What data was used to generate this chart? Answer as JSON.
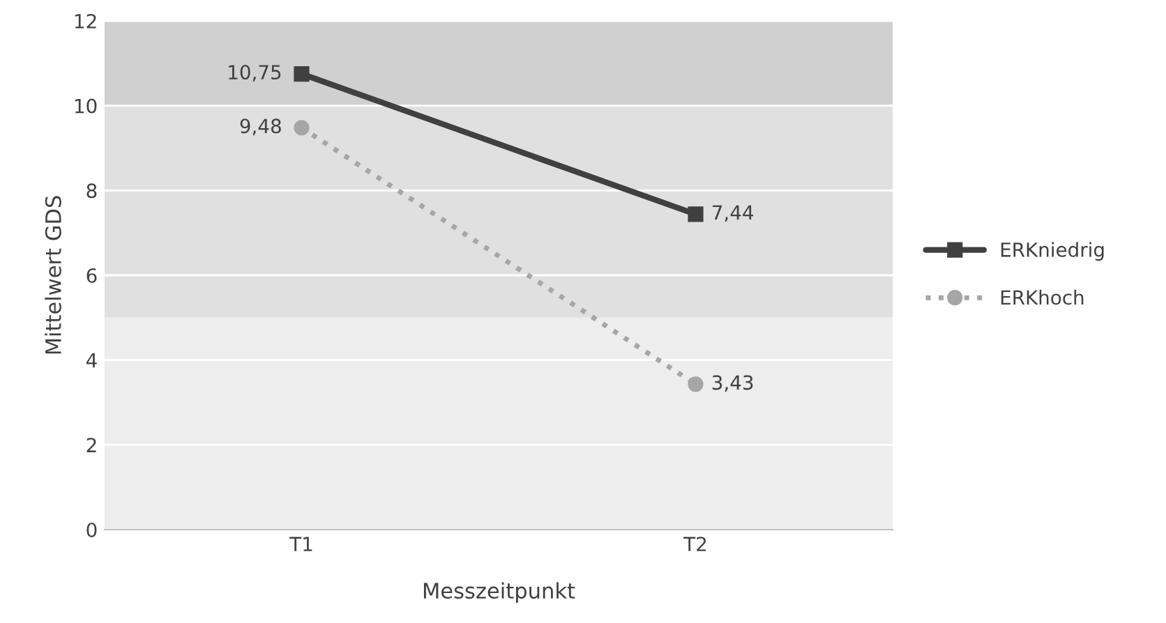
{
  "chart_data": {
    "type": "line",
    "xlabel": "Messzeitpunkt",
    "ylabel": "Mittelwert GDS",
    "categories": [
      "T1",
      "T2"
    ],
    "series": [
      {
        "name": "ERKniedrig",
        "color": "#404040",
        "values": [
          10.75,
          7.44
        ],
        "value_labels": [
          "10,75",
          "7,44"
        ],
        "marker": "square",
        "line_style": "solid"
      },
      {
        "name": "ERKhoch",
        "color": "#a6a6a6",
        "values": [
          9.48,
          3.43
        ],
        "value_labels": [
          "9,48",
          "3,43"
        ],
        "marker": "circle",
        "line_style": "dotted"
      }
    ],
    "ylim": [
      0,
      12
    ],
    "yticks": [
      0,
      2,
      4,
      6,
      8,
      10,
      12
    ],
    "grid": "y",
    "legend": "right",
    "bands": [
      {
        "axis": "y",
        "from": 0,
        "to": 5,
        "color": "#ededed"
      },
      {
        "axis": "y",
        "from": 5,
        "to": 10,
        "color": "#e0e0e0"
      },
      {
        "axis": "y",
        "from": 10,
        "to": 12,
        "color": "#d0d0d0"
      }
    ]
  }
}
